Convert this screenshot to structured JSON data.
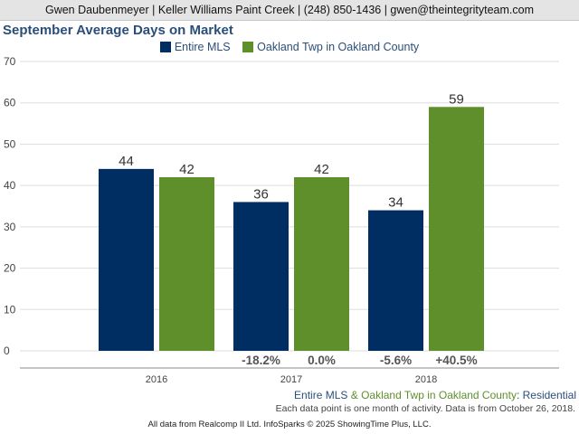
{
  "header": {
    "text": "Gwen Daubenmeyer | Keller Williams Paint Creek | (248) 850-1436 | gwen@theintegrityteam.com"
  },
  "colors": {
    "series1": "#002d62",
    "series2": "#5f8f2b",
    "title": "#2a4e79"
  },
  "chart_data": {
    "type": "bar",
    "title": "September Average Days on Market",
    "categories": [
      "2016",
      "2017",
      "2018"
    ],
    "series": [
      {
        "name": "Entire MLS",
        "values": [
          44,
          36,
          34
        ],
        "changes": [
          "",
          "-18.2%",
          "-5.6%"
        ]
      },
      {
        "name": "Oakland Twp in Oakland County",
        "values": [
          42,
          42,
          59
        ],
        "changes": [
          "",
          "0.0%",
          "+40.5%"
        ]
      }
    ],
    "yticks": [
      0,
      10,
      20,
      30,
      40,
      50,
      60,
      70
    ],
    "ylim": [
      0,
      70
    ],
    "grid": true,
    "legend_position": "top"
  },
  "footer": {
    "series1": "Entire MLS",
    "amp": " & ",
    "series2": "Oakland Twp in Oakland County",
    "suffix": ": Residential",
    "note": "Each data point is one month of activity. Data is from October 26, 2018.",
    "source": "All data from Realcomp II Ltd. InfoSparks © 2025 ShowingTime Plus, LLC."
  }
}
